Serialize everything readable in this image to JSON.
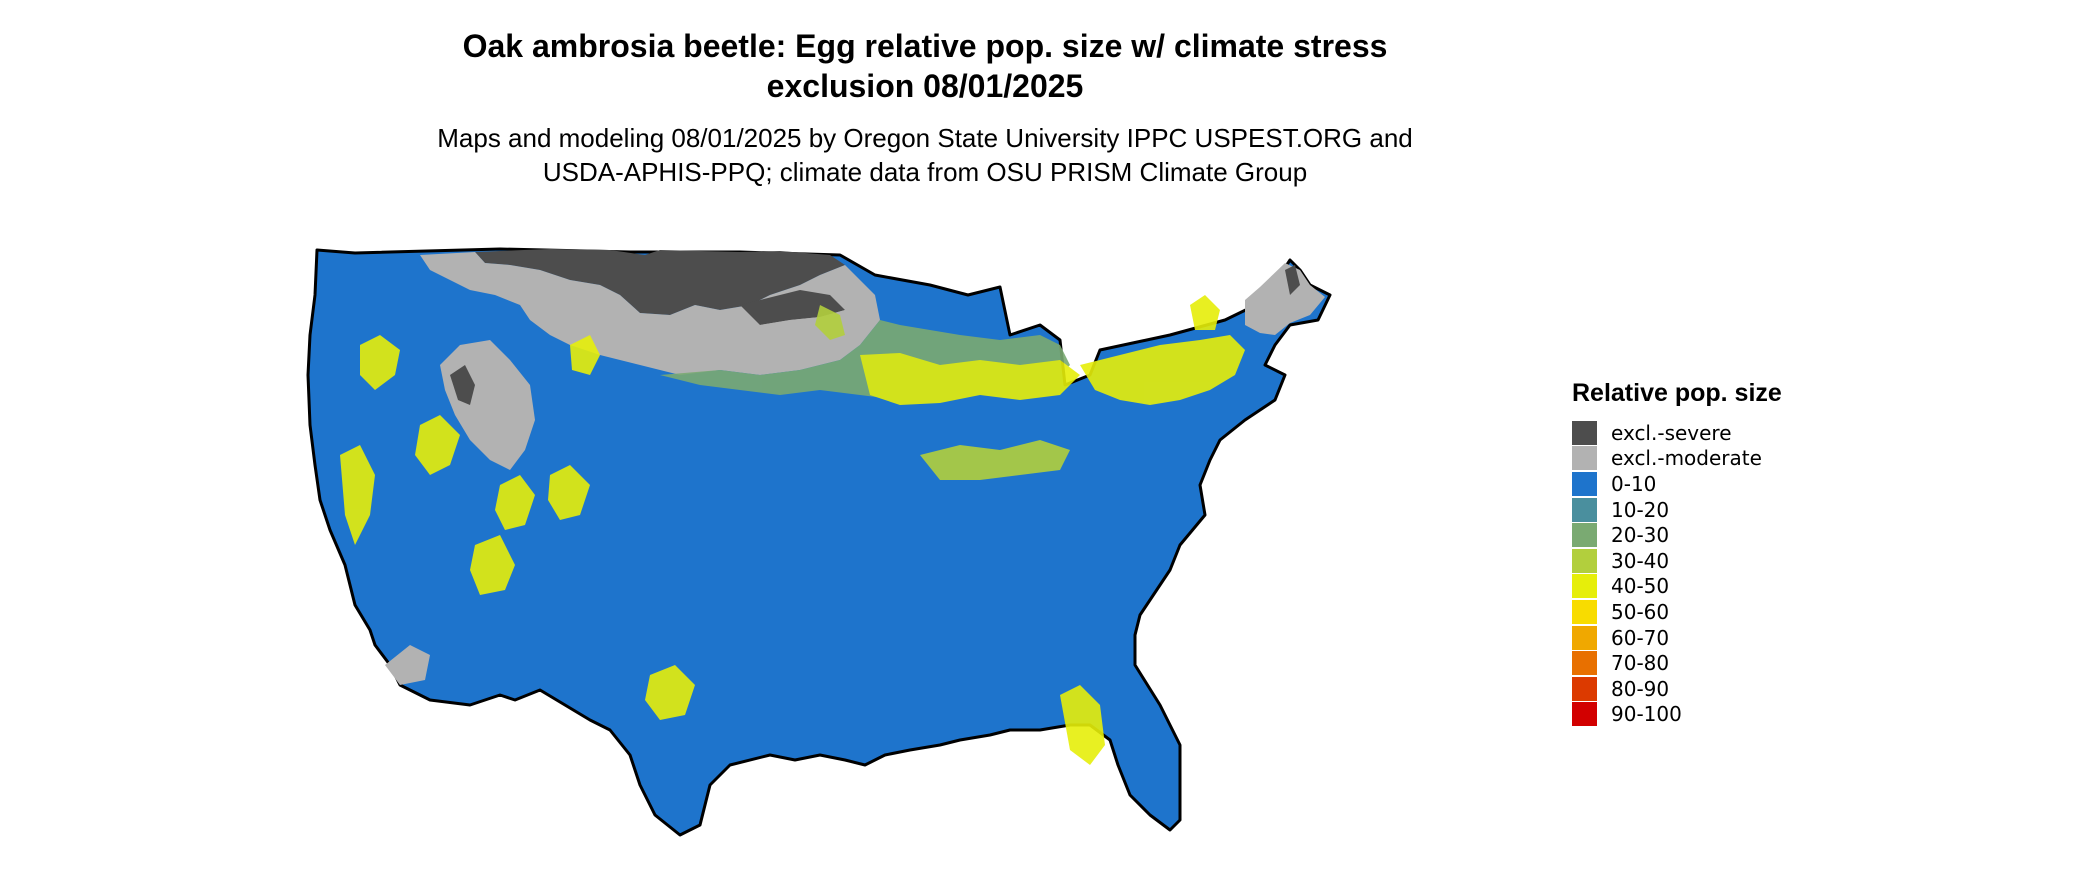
{
  "map": {
    "title_line1": "Oak ambrosia beetle: Egg relative pop. size w/ climate stress",
    "title_line2": "exclusion 08/01/2025",
    "subtitle_line1": "Maps and modeling 08/01/2025 by Oregon State University IPPC USPEST.ORG and",
    "subtitle_line2": "USDA-APHIS-PPQ; climate data from OSU PRISM Climate Group",
    "region": "Contiguous United States",
    "colors": {
      "ocean": "#ffffff",
      "border": "#000000",
      "excl_severe": "#4d4d4d",
      "excl_moderate": "#b2b2b2",
      "low": "#1e74cc",
      "mid": "#e6ee0a"
    }
  },
  "legend": {
    "title": "Relative pop. size",
    "items": [
      {
        "label": "excl.-severe",
        "color": "#4d4d4d"
      },
      {
        "label": "excl.-moderate",
        "color": "#b2b2b2"
      },
      {
        "label": "0-10",
        "color": "#1e74cc"
      },
      {
        "label": "10-20",
        "color": "#4a8f9e"
      },
      {
        "label": "20-30",
        "color": "#7aaa72"
      },
      {
        "label": "30-40",
        "color": "#b2cf3d"
      },
      {
        "label": "40-50",
        "color": "#e6ee0a"
      },
      {
        "label": "50-60",
        "color": "#f8dc00"
      },
      {
        "label": "60-70",
        "color": "#f0a800"
      },
      {
        "label": "70-80",
        "color": "#e87000"
      },
      {
        "label": "80-90",
        "color": "#dc3a00"
      },
      {
        "label": "90-100",
        "color": "#d20000"
      }
    ]
  }
}
